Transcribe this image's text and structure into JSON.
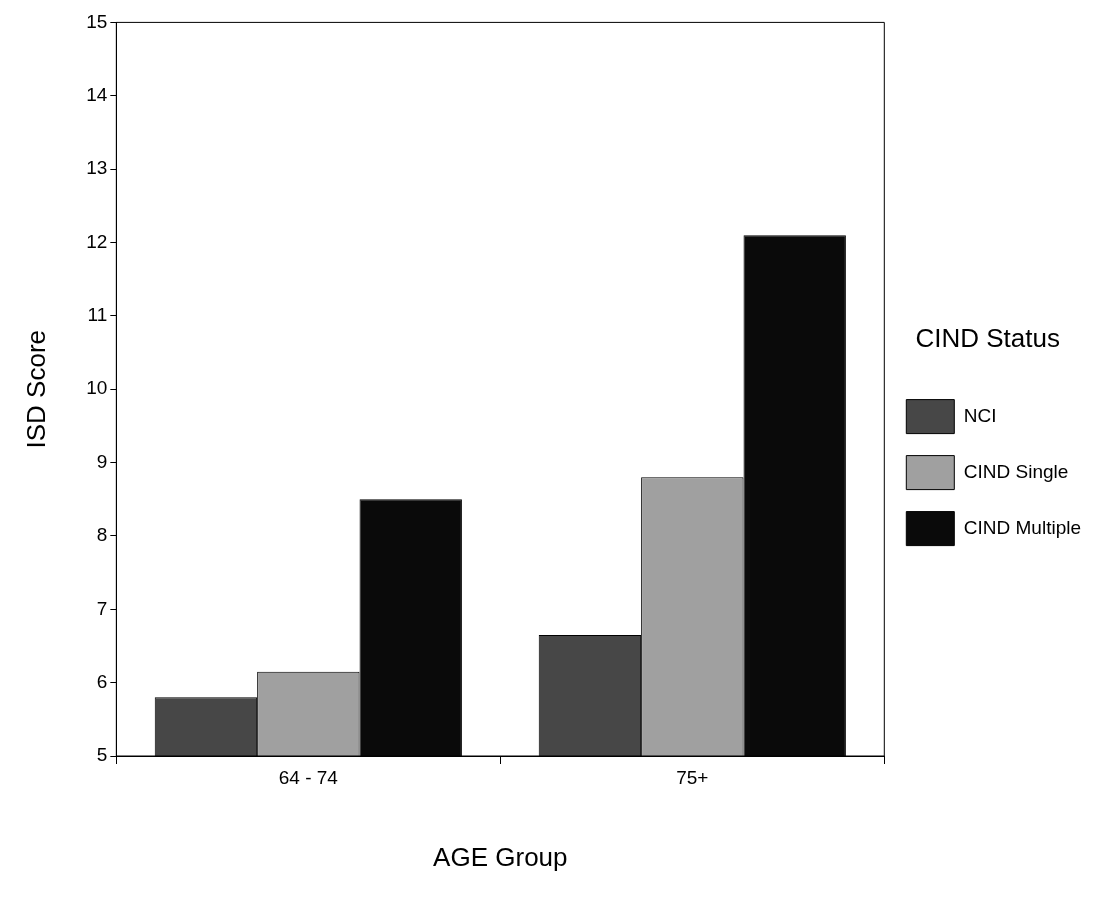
{
  "chart_data": {
    "type": "bar",
    "xlabel": "AGE Group",
    "ylabel": "ISD Score",
    "legend_title": "CIND Status",
    "legend": "right",
    "grid": false,
    "categories": [
      "64 - 74",
      "75+"
    ],
    "series": [
      {
        "name": "NCI",
        "color": "#474747",
        "values": [
          5.8,
          6.65
        ]
      },
      {
        "name": "CIND Single",
        "color": "#a0a0a0",
        "values": [
          6.15,
          8.8
        ]
      },
      {
        "name": "CIND Multiple",
        "color": "#0a0a0a",
        "values": [
          8.5,
          12.1
        ]
      }
    ],
    "ylim": [
      5,
      15
    ],
    "yticks": [
      5,
      6,
      7,
      8,
      9,
      10,
      11,
      12,
      13,
      14,
      15
    ]
  }
}
